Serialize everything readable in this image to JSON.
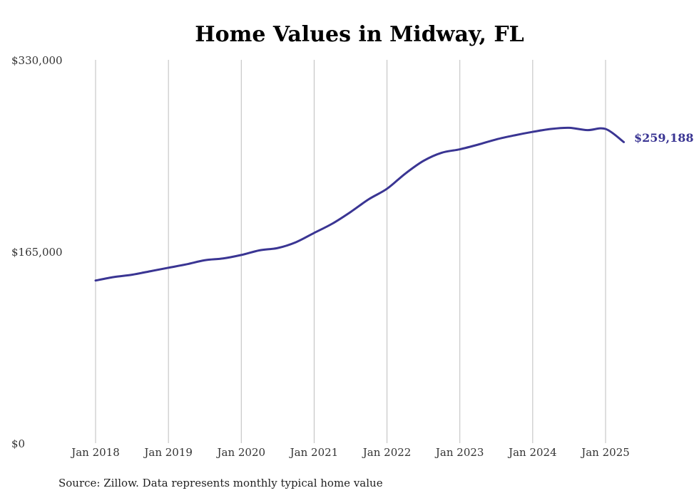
{
  "chart_data": {
    "type": "line",
    "title": "Home Values in Midway, FL",
    "source_note": "Source: Zillow. Data represents monthly typical home value",
    "xlabel": "",
    "ylabel": "",
    "ylim": [
      0,
      330000
    ],
    "y_ticks": [
      {
        "value": 0,
        "label": "$0"
      },
      {
        "value": 165000,
        "label": "$165,000"
      },
      {
        "value": 330000,
        "label": "$330,000"
      }
    ],
    "x_ticks": [
      {
        "value": 2018,
        "label": "Jan 2018"
      },
      {
        "value": 2019,
        "label": "Jan 2019"
      },
      {
        "value": 2020,
        "label": "Jan 2020"
      },
      {
        "value": 2021,
        "label": "Jan 2021"
      },
      {
        "value": 2022,
        "label": "Jan 2022"
      },
      {
        "value": 2023,
        "label": "Jan 2023"
      },
      {
        "value": 2024,
        "label": "Jan 2024"
      },
      {
        "value": 2025,
        "label": "Jan 2025"
      }
    ],
    "grid": "vertical",
    "line_color": "#3a3593",
    "end_label": "$259,188",
    "series": [
      {
        "values": [
          {
            "x": "2018-01",
            "y": 140000
          },
          {
            "x": "2018-04",
            "y": 143000
          },
          {
            "x": "2018-07",
            "y": 145000
          },
          {
            "x": "2018-10",
            "y": 148000
          },
          {
            "x": "2019-01",
            "y": 151000
          },
          {
            "x": "2019-04",
            "y": 154000
          },
          {
            "x": "2019-07",
            "y": 157500
          },
          {
            "x": "2019-10",
            "y": 159000
          },
          {
            "x": "2020-01",
            "y": 162000
          },
          {
            "x": "2020-04",
            "y": 166000
          },
          {
            "x": "2020-07",
            "y": 168000
          },
          {
            "x": "2020-10",
            "y": 173000
          },
          {
            "x": "2021-01",
            "y": 181000
          },
          {
            "x": "2021-04",
            "y": 189000
          },
          {
            "x": "2021-07",
            "y": 199000
          },
          {
            "x": "2021-10",
            "y": 210000
          },
          {
            "x": "2022-01",
            "y": 219000
          },
          {
            "x": "2022-04",
            "y": 232000
          },
          {
            "x": "2022-07",
            "y": 243000
          },
          {
            "x": "2022-10",
            "y": 250000
          },
          {
            "x": "2023-01",
            "y": 253000
          },
          {
            "x": "2023-04",
            "y": 257000
          },
          {
            "x": "2023-07",
            "y": 261500
          },
          {
            "x": "2023-10",
            "y": 265000
          },
          {
            "x": "2024-01",
            "y": 268000
          },
          {
            "x": "2024-04",
            "y": 270500
          },
          {
            "x": "2024-07",
            "y": 271500
          },
          {
            "x": "2024-10",
            "y": 269500
          },
          {
            "x": "2025-01",
            "y": 270500
          },
          {
            "x": "2025-04",
            "y": 259188
          }
        ]
      }
    ]
  }
}
